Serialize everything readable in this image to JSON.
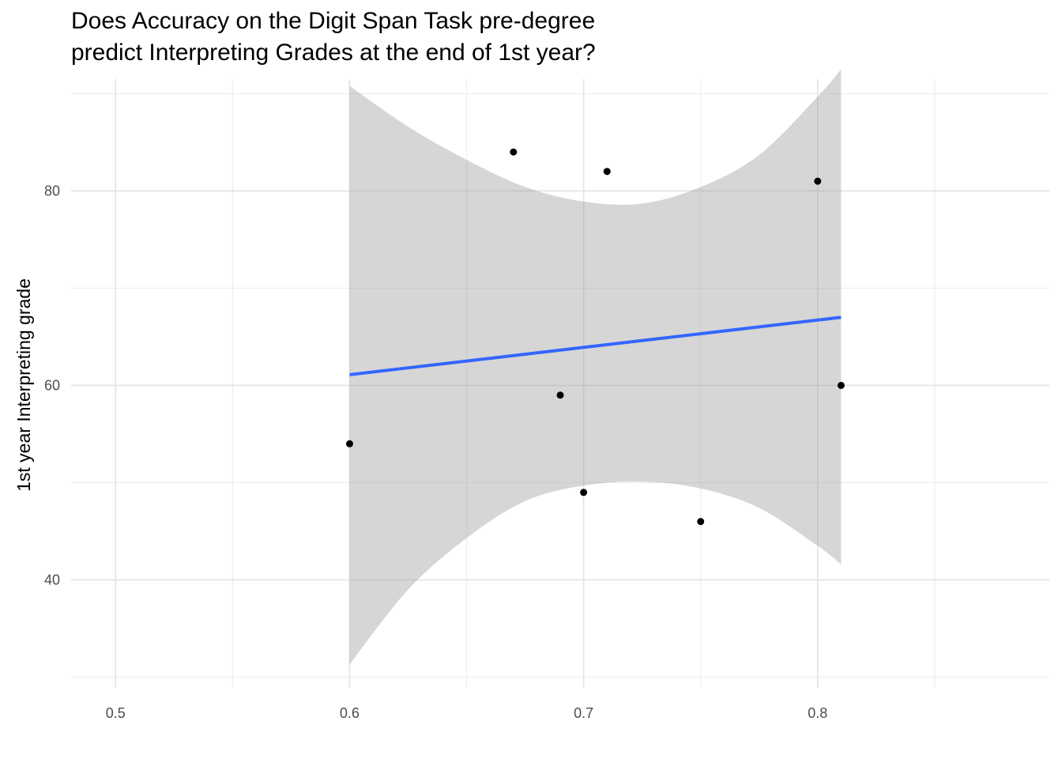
{
  "chart_data": {
    "type": "scatter",
    "title": [
      "Does Accuracy on the Digit Span Task pre-degree",
      "predict Interpreting Grades at the end of 1st year?"
    ],
    "xlabel": "",
    "ylabel": "1st year Interpreting grade",
    "xlim": [
      0.481,
      0.899
    ],
    "ylim": [
      28.9,
      91.5
    ],
    "x_ticks": [
      0.5,
      0.6,
      0.7,
      0.8
    ],
    "x_tick_labels": [
      "0.5",
      "0.6",
      "0.7",
      "0.8"
    ],
    "y_ticks": [
      40,
      60,
      80
    ],
    "y_tick_labels": [
      "40",
      "60",
      "80"
    ],
    "x_minor": [
      0.55,
      0.65,
      0.75,
      0.85
    ],
    "y_minor": [
      30,
      50,
      70,
      90
    ],
    "grid": true,
    "points": [
      {
        "x": 0.6,
        "y": 54
      },
      {
        "x": 0.67,
        "y": 84
      },
      {
        "x": 0.69,
        "y": 59
      },
      {
        "x": 0.7,
        "y": 49
      },
      {
        "x": 0.71,
        "y": 82
      },
      {
        "x": 0.75,
        "y": 46
      },
      {
        "x": 0.8,
        "y": 81
      },
      {
        "x": 0.81,
        "y": 60
      }
    ],
    "trend": {
      "type": "linear",
      "x": [
        0.6,
        0.81
      ],
      "y": [
        61.1,
        67.0
      ],
      "color": "#3366ff"
    },
    "confidence_band": {
      "color": "#999999",
      "x": [
        0.6,
        0.625,
        0.65,
        0.675,
        0.7,
        0.725,
        0.75,
        0.775,
        0.8,
        0.81
      ],
      "upper": [
        90.8,
        86.6,
        83.2,
        80.4,
        78.9,
        78.7,
        80.4,
        83.7,
        89.7,
        92.5
      ],
      "lower": [
        31.3,
        39.0,
        44.3,
        48.1,
        49.7,
        50.1,
        49.4,
        47.4,
        43.5,
        41.6
      ]
    },
    "point_color": "#000000"
  }
}
